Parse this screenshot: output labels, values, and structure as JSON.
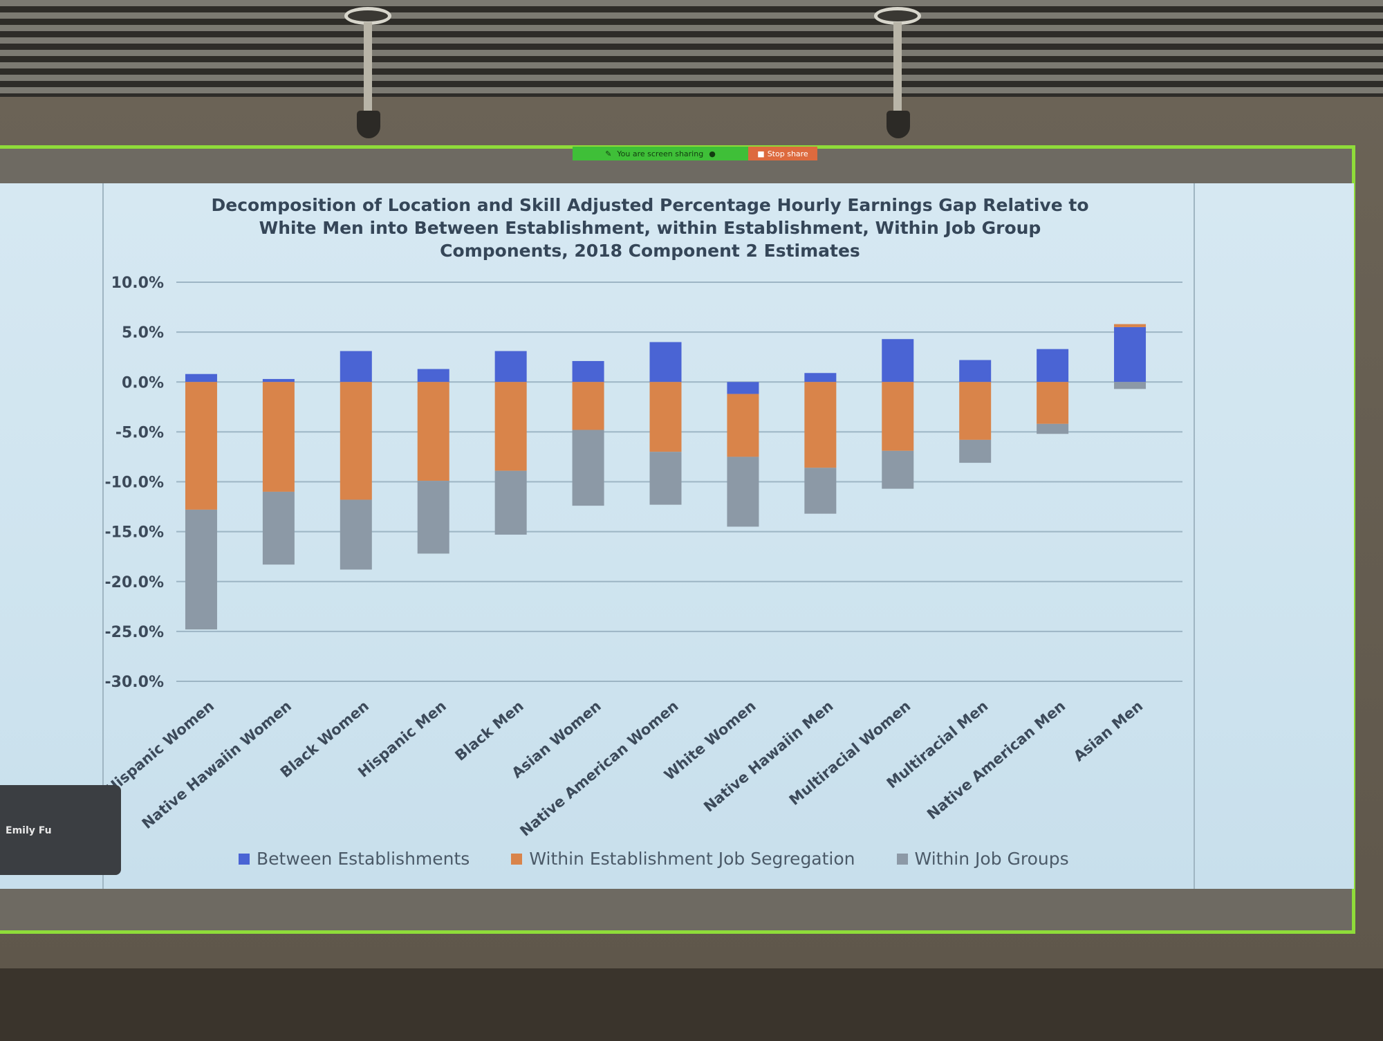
{
  "share_bar": {
    "status_label": "You are screen sharing",
    "stop_label": "Stop share"
  },
  "video_tile": {
    "participant_name": "Emily Fu"
  },
  "colors": {
    "between": "#4a64d4",
    "within_seg": "#d9844a",
    "within_job": "#8c99a6",
    "grid": "#9db5c4",
    "axis_text": "#3c4a5a"
  },
  "chart_data": {
    "type": "bar",
    "stacked": true,
    "title": "Decomposition of Location and Skill Adjusted Percentage Hourly Earnings Gap Relative to White Men into Between Establishment, within Establishment, Within Job Group Components, 2018 Component 2 Estimates",
    "title_lines": [
      "Decomposition of Location and Skill Adjusted Percentage Hourly Earnings Gap Relative to",
      "White Men into Between Establishment, within Establishment, Within Job Group",
      "Components, 2018 Component 2 Estimates"
    ],
    "categories": [
      "Hispanic Women",
      "Native Hawaiin Women",
      "Black Women",
      "Hispanic Men",
      "Black Men",
      "Asian Women",
      "Native American Women",
      "White Women",
      "Native Hawaiin Men",
      "Multiracial Women",
      "Multiracial Men",
      "Native American Men",
      "Asian Men"
    ],
    "series": [
      {
        "name": "Between Establishments",
        "values": [
          0.8,
          0.3,
          3.1,
          1.3,
          3.1,
          2.1,
          4.0,
          -1.2,
          0.9,
          4.3,
          2.2,
          3.3,
          5.5
        ]
      },
      {
        "name": "Within Establishment Job Segregation",
        "values": [
          -12.8,
          -11.0,
          -11.8,
          -9.9,
          -8.9,
          -4.8,
          -7.0,
          -6.3,
          -8.6,
          -6.9,
          -5.8,
          -4.2,
          0.3
        ]
      },
      {
        "name": "Within Job Groups",
        "values": [
          -12.0,
          -7.3,
          -7.0,
          -7.3,
          -6.4,
          -7.6,
          -5.3,
          -7.0,
          -4.6,
          -3.8,
          -2.3,
          -1.0,
          -0.7
        ]
      }
    ],
    "y_ticks": [
      "10.0%",
      "5.0%",
      "0.0%",
      "-5.0%",
      "-10.0%",
      "-15.0%",
      "-20.0%",
      "-25.0%",
      "-30.0%"
    ],
    "ylim": [
      -30,
      10
    ],
    "grid": true,
    "legend_position": "bottom"
  }
}
